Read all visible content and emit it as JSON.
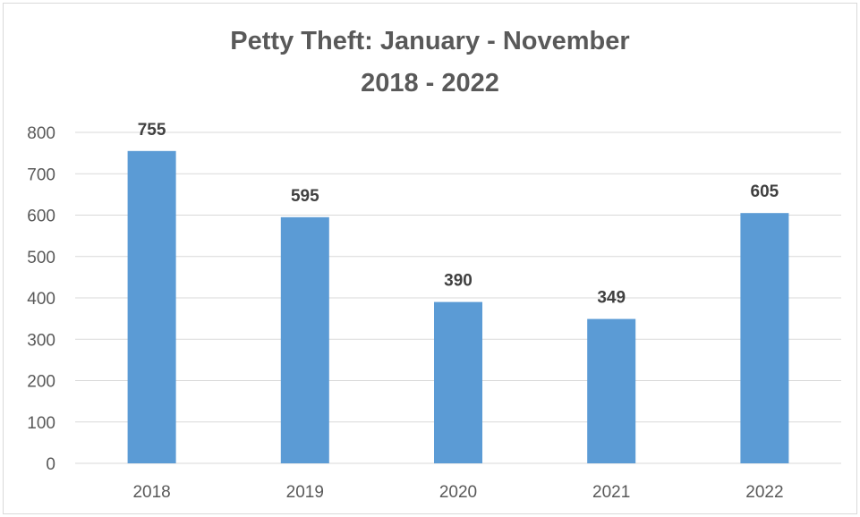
{
  "chart_data": {
    "type": "bar",
    "title": "Petty Theft: January - November",
    "subtitle": "2018 - 2022",
    "categories": [
      "2018",
      "2019",
      "2020",
      "2021",
      "2022"
    ],
    "values": [
      755,
      595,
      390,
      349,
      605
    ],
    "data_labels": [
      "755",
      "595",
      "390",
      "349",
      "605"
    ],
    "xlabel": "",
    "ylabel": "",
    "ylim": [
      0,
      800
    ],
    "yticks": [
      "0",
      "100",
      "200",
      "300",
      "400",
      "500",
      "600",
      "700",
      "800"
    ],
    "grid": true,
    "legend": "none",
    "bar_color": "#5b9bd5",
    "grid_color": "#d9d9d9"
  }
}
